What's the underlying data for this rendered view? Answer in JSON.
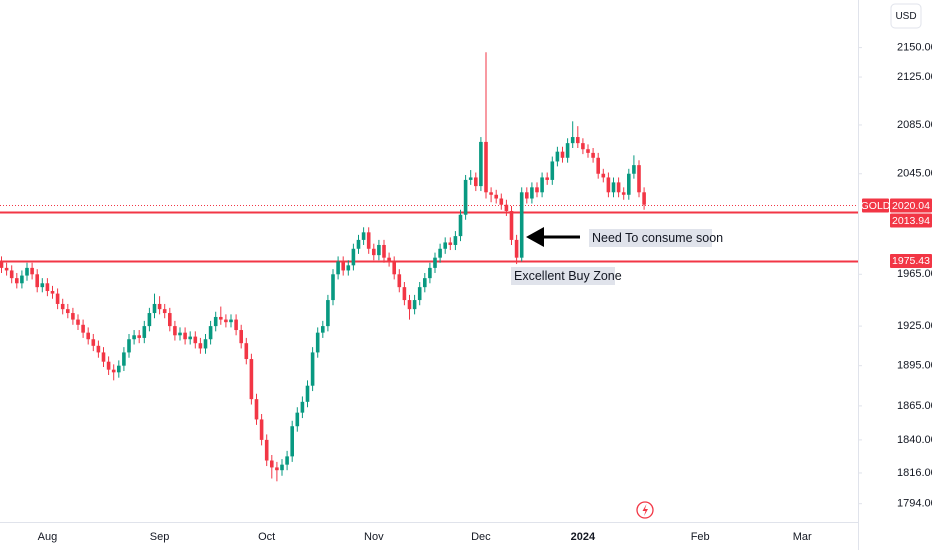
{
  "chart_data": {
    "type": "candlestick",
    "symbol": "GOLD",
    "currency": "USD",
    "log_scale": true,
    "up_color": "#089981",
    "down_color": "#f23645",
    "line_color": "#f23645",
    "ylim": [
      1781,
      2191
    ],
    "yticks": [
      {
        "value": 2150,
        "label": "2150.00"
      },
      {
        "value": 2125,
        "label": "2125.00"
      },
      {
        "value": 2085,
        "label": "2085.00"
      },
      {
        "value": 2045,
        "label": "2045.00"
      },
      {
        "value": 1965,
        "label": "1965.00"
      },
      {
        "value": 1925,
        "label": "1925.00"
      },
      {
        "value": 1895,
        "label": "1895.00"
      },
      {
        "value": 1865,
        "label": "1865.00"
      },
      {
        "value": 1840,
        "label": "1840.00"
      },
      {
        "value": 1816,
        "label": "1816.00"
      },
      {
        "value": 1794,
        "label": "1794.00"
      }
    ],
    "categories": [
      null,
      null,
      null,
      null,
      null,
      null,
      null,
      null,
      null,
      "Aug",
      null,
      null,
      null,
      null,
      null,
      null,
      null,
      null,
      null,
      null,
      null,
      null,
      null,
      null,
      null,
      null,
      null,
      null,
      null,
      null,
      null,
      "Sep",
      null,
      null,
      null,
      null,
      null,
      null,
      null,
      null,
      null,
      null,
      null,
      null,
      null,
      null,
      null,
      null,
      null,
      null,
      null,
      null,
      "Oct",
      null,
      null,
      null,
      null,
      null,
      null,
      null,
      null,
      null,
      null,
      null,
      null,
      null,
      null,
      null,
      null,
      null,
      null,
      null,
      null,
      "Nov",
      null,
      null,
      null,
      null,
      null,
      null,
      null,
      null,
      null,
      null,
      null,
      null,
      null,
      null,
      null,
      null,
      null,
      null,
      null,
      null,
      "Dec",
      null,
      null,
      null,
      null,
      null,
      null,
      null,
      null,
      null,
      null,
      null,
      null,
      null,
      null,
      null,
      null,
      null,
      null,
      null,
      "2024",
      null,
      null,
      null,
      null,
      null,
      null,
      null,
      null,
      null,
      null,
      null,
      null,
      null,
      null,
      null,
      null,
      null,
      null,
      null,
      null,
      null,
      null,
      "Feb",
      null,
      null,
      null,
      null,
      null,
      null,
      null,
      null,
      null,
      null,
      null,
      null,
      null,
      null,
      null,
      null,
      null,
      null,
      null,
      "Mar"
    ],
    "open": [
      1975,
      1970,
      1968,
      1962,
      1958,
      1964,
      1970,
      1965,
      1955,
      1958,
      1952,
      1950,
      1942,
      1938,
      1935,
      1930,
      1926,
      1920,
      1915,
      1910,
      1905,
      1898,
      1892,
      1890,
      1895,
      1905,
      1915,
      1918,
      1916,
      1925,
      1935,
      1942,
      1938,
      1935,
      1925,
      1918,
      1920,
      1915,
      1917,
      1912,
      1908,
      1915,
      1925,
      1932,
      1930,
      1928,
      1930,
      1922,
      1912,
      1900,
      1870,
      1855,
      1840,
      1825,
      1820,
      1818,
      1822,
      1828,
      1850,
      1860,
      1868,
      1880,
      1905,
      1920,
      1925,
      1945,
      1965,
      1975,
      1968,
      1972,
      1985,
      1992,
      1998,
      1985,
      1980,
      1988,
      1978,
      1975,
      1965,
      1955,
      1945,
      1938,
      1945,
      1955,
      1962,
      1970,
      1978,
      1985,
      1990,
      1988,
      1995,
      2012,
      2040,
      2042,
      2035,
      2071,
      2030,
      2028,
      2025,
      2020,
      2015,
      1992,
      1978,
      2030,
      2025,
      2034,
      2030,
      2042,
      2040,
      2055,
      2063,
      2058,
      2070,
      2075,
      2070,
      2065,
      2062,
      2058,
      2045,
      2042,
      2030,
      2038,
      2030,
      2028,
      2045,
      2052,
      2030,
      null,
      null,
      null,
      null,
      null,
      null,
      null,
      null,
      null,
      null,
      null,
      null,
      null,
      null,
      null,
      null,
      null,
      null,
      null,
      null,
      null,
      null,
      null,
      null,
      null,
      null,
      null,
      null,
      null,
      null,
      null
    ],
    "high": [
      1979,
      1974,
      1972,
      1966,
      1968,
      1974,
      1974,
      1969,
      1962,
      1962,
      1956,
      1954,
      1946,
      1942,
      1939,
      1934,
      1930,
      1924,
      1919,
      1914,
      1909,
      1902,
      1896,
      1899,
      1909,
      1919,
      1922,
      1922,
      1929,
      1939,
      1950,
      1948,
      1942,
      1939,
      1929,
      1924,
      1924,
      1921,
      1921,
      1916,
      1919,
      1929,
      1936,
      1940,
      1934,
      1934,
      1934,
      1926,
      1916,
      1904,
      1874,
      1859,
      1844,
      1829,
      1824,
      1826,
      1832,
      1854,
      1864,
      1872,
      1884,
      1909,
      1924,
      1929,
      1949,
      1969,
      1979,
      1979,
      1976,
      1989,
      1996,
      2002,
      2002,
      1989,
      1992,
      1992,
      1982,
      1979,
      1969,
      1959,
      1949,
      1949,
      1959,
      1966,
      1974,
      1982,
      1989,
      1994,
      1994,
      1999,
      2016,
      2044,
      2048,
      2046,
      2075,
      2146,
      2034,
      2032,
      2029,
      2024,
      2019,
      1996,
      2034,
      2034,
      2038,
      2038,
      2046,
      2046,
      2059,
      2067,
      2067,
      2074,
      2088,
      2084,
      2074,
      2069,
      2066,
      2062,
      2049,
      2046,
      2042,
      2042,
      2034,
      2049,
      2060,
      2056,
      2034,
      null,
      null,
      null,
      null,
      null,
      null,
      null,
      null,
      null,
      null,
      null,
      null,
      null,
      null,
      null,
      null,
      null,
      null,
      null,
      null,
      null,
      null,
      null,
      null,
      null,
      null,
      null,
      null,
      null,
      null,
      null
    ],
    "low": [
      1966,
      1964,
      1958,
      1954,
      1954,
      1960,
      1961,
      1951,
      1951,
      1948,
      1946,
      1938,
      1934,
      1931,
      1926,
      1922,
      1916,
      1911,
      1906,
      1901,
      1894,
      1888,
      1884,
      1886,
      1891,
      1901,
      1911,
      1912,
      1912,
      1921,
      1931,
      1934,
      1931,
      1921,
      1914,
      1914,
      1911,
      1911,
      1908,
      1904,
      1904,
      1911,
      1921,
      1926,
      1924,
      1924,
      1918,
      1908,
      1896,
      1866,
      1851,
      1836,
      1821,
      1812,
      1810,
      1814,
      1818,
      1824,
      1846,
      1856,
      1864,
      1876,
      1901,
      1916,
      1921,
      1941,
      1961,
      1964,
      1964,
      1968,
      1981,
      1988,
      1981,
      1976,
      1976,
      1974,
      1971,
      1961,
      1951,
      1941,
      1930,
      1934,
      1941,
      1951,
      1958,
      1966,
      1974,
      1981,
      1984,
      1984,
      1991,
      2008,
      2036,
      2031,
      2031,
      2025,
      2022,
      2021,
      2016,
      2011,
      1988,
      1973,
      1975,
      2021,
      2021,
      2026,
      2026,
      2036,
      2036,
      2051,
      2054,
      2054,
      2066,
      2066,
      2061,
      2058,
      2054,
      2041,
      2038,
      2026,
      2026,
      2026,
      2024,
      2024,
      2041,
      2026,
      2016,
      null,
      null,
      null,
      null,
      null,
      null,
      null,
      null,
      null,
      null,
      null,
      null,
      null,
      null,
      null,
      null,
      null,
      null,
      null,
      null,
      null,
      null,
      null,
      null,
      null,
      null,
      null,
      null,
      null,
      null,
      null
    ],
    "close": [
      1970,
      1968,
      1962,
      1958,
      1964,
      1970,
      1965,
      1955,
      1958,
      1952,
      1950,
      1942,
      1938,
      1935,
      1930,
      1926,
      1920,
      1915,
      1910,
      1905,
      1898,
      1892,
      1890,
      1895,
      1905,
      1915,
      1918,
      1916,
      1925,
      1935,
      1942,
      1938,
      1935,
      1925,
      1918,
      1920,
      1915,
      1917,
      1912,
      1908,
      1915,
      1925,
      1932,
      1930,
      1928,
      1930,
      1922,
      1912,
      1900,
      1870,
      1855,
      1840,
      1825,
      1820,
      1818,
      1822,
      1828,
      1850,
      1860,
      1868,
      1880,
      1905,
      1920,
      1925,
      1945,
      1965,
      1975,
      1968,
      1972,
      1985,
      1992,
      1998,
      1985,
      1980,
      1988,
      1978,
      1975,
      1965,
      1955,
      1945,
      1938,
      1945,
      1955,
      1962,
      1970,
      1978,
      1985,
      1990,
      1988,
      1995,
      2012,
      2040,
      2042,
      2035,
      2071,
      2030,
      2028,
      2025,
      2020,
      2015,
      1992,
      1978,
      2030,
      2025,
      2034,
      2030,
      2042,
      2040,
      2055,
      2063,
      2058,
      2070,
      2075,
      2070,
      2065,
      2062,
      2058,
      2045,
      2042,
      2030,
      2038,
      2030,
      2028,
      2045,
      2052,
      2030,
      2020.04,
      null,
      null,
      null,
      null,
      null,
      null,
      null,
      null,
      null,
      null,
      null,
      null,
      null,
      null,
      null,
      null,
      null,
      null,
      null,
      null,
      null,
      null,
      null,
      null,
      null,
      null,
      null,
      null,
      null,
      null,
      null
    ],
    "last_price": 2020.04,
    "hlines": [
      2013.94,
      1975.43
    ],
    "annotations": [
      "Need To consume soon",
      "Excellent Buy Zone"
    ]
  }
}
